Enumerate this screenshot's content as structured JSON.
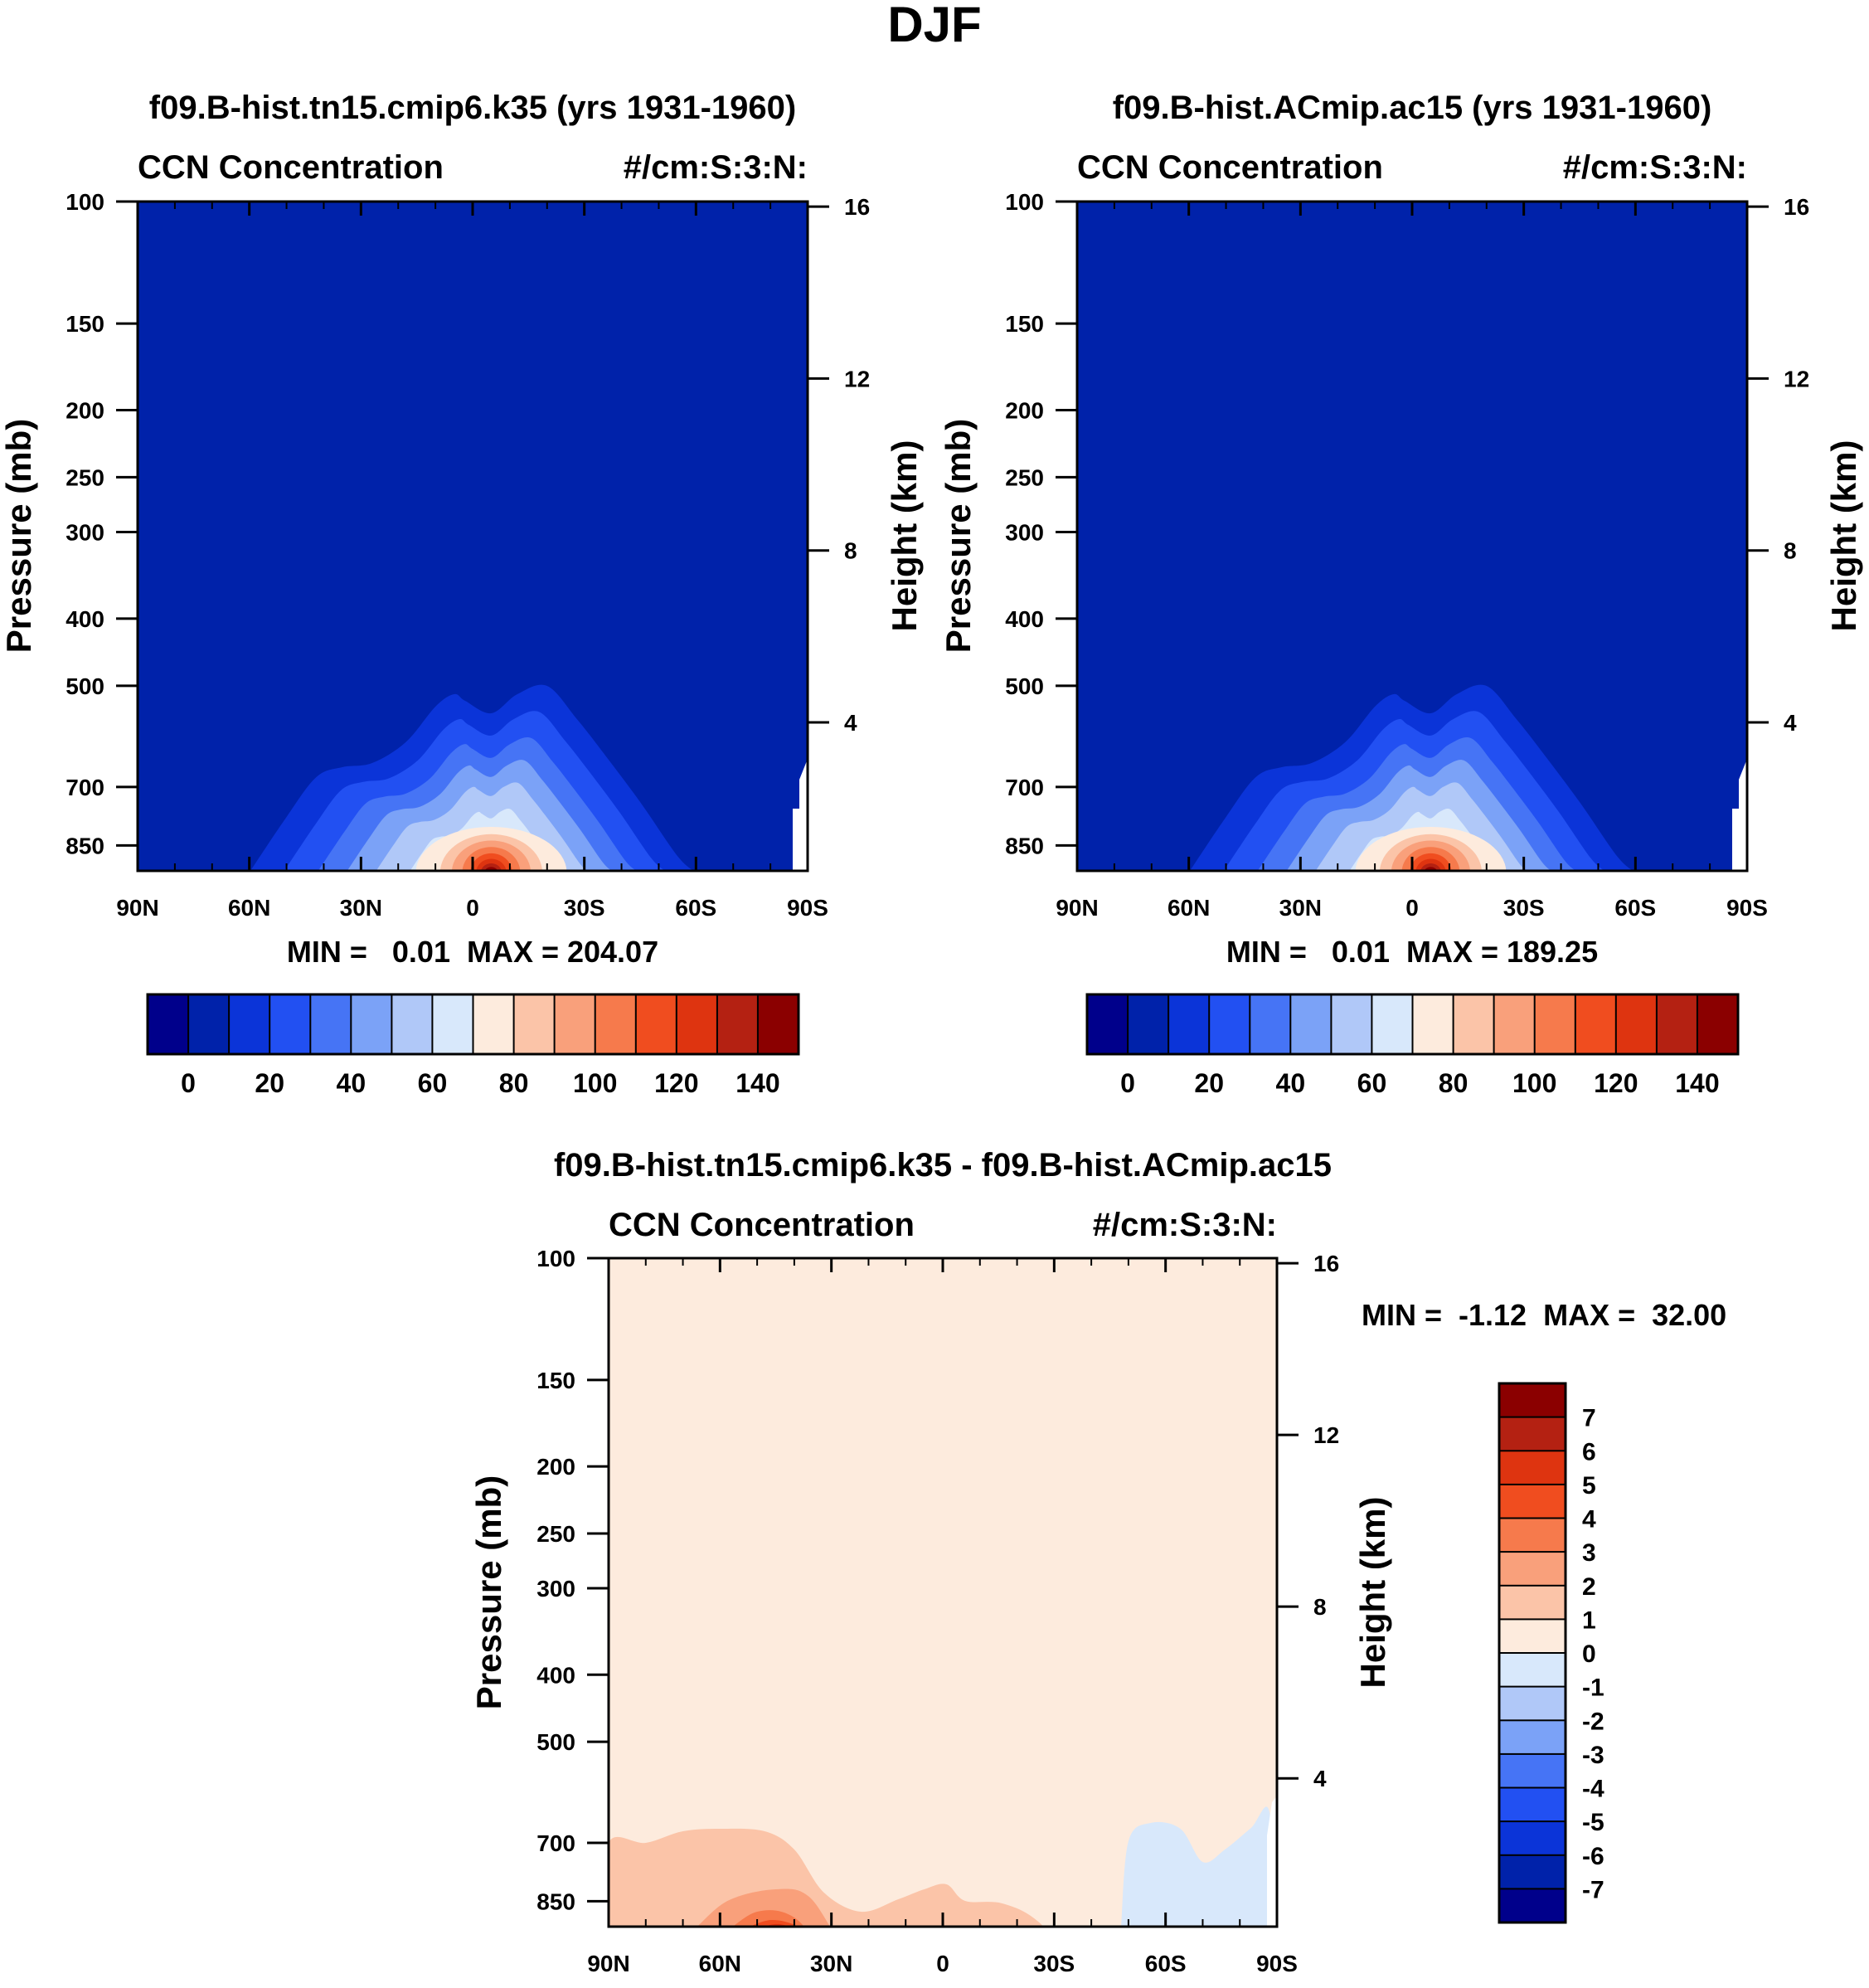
{
  "page_title": "DJF",
  "palette": {
    "main": [
      "#00008b",
      "#0022aa",
      "#0b34d8",
      "#2250f2",
      "#4674f5",
      "#7ba2f7",
      "#b0c8f8",
      "#d8e8fb",
      "#fdebdd",
      "#fbc4a8",
      "#f9a07b",
      "#f67a4c",
      "#f04d1f",
      "#de3410",
      "#b42112",
      "#8b0000"
    ],
    "diff": [
      "#00008b",
      "#0022aa",
      "#0b34d8",
      "#2250f2",
      "#4674f5",
      "#7ba2f7",
      "#b0c8f8",
      "#d8e8fb",
      "#fdebdd",
      "#fbc4a8",
      "#f9a07b",
      "#f67a4c",
      "#f04d1f",
      "#de3410",
      "#b42112",
      "#8b0000"
    ]
  },
  "chart_data": [
    {
      "id": "model-a",
      "type": "contour",
      "title": "f09.B-hist.tn15.cmip6.k35 (yrs 1931-1960)",
      "left_subtitle": "CCN Concentration",
      "right_subtitle": "#/cm:S:3:N:",
      "xlabel": "",
      "ylabel": "Pressure (mb)",
      "y2label": "Height (km)",
      "x_ticks": [
        "90N",
        "60N",
        "30N",
        "0",
        "30S",
        "60S",
        "90S"
      ],
      "y_ticks": [
        100,
        150,
        200,
        250,
        300,
        400,
        500,
        700,
        850
      ],
      "y2_ticks": [
        16,
        12,
        8,
        4
      ],
      "min_max": "MIN =   0.01  MAX = 204.07",
      "colorbar_labels": [
        "0",
        "20",
        "40",
        "60",
        "80",
        "100",
        "120",
        "140"
      ],
      "peak_latitude": -5,
      "cap_top_mb": 500
    },
    {
      "id": "model-b",
      "type": "contour",
      "title": "f09.B-hist.ACmip.ac15 (yrs 1931-1960)",
      "left_subtitle": "CCN Concentration",
      "right_subtitle": "#/cm:S:3:N:",
      "xlabel": "",
      "ylabel": "Pressure (mb)",
      "y2label": "Height (km)",
      "x_ticks": [
        "90N",
        "60N",
        "30N",
        "0",
        "30S",
        "60S",
        "90S"
      ],
      "y_ticks": [
        100,
        150,
        200,
        250,
        300,
        400,
        500,
        700,
        850
      ],
      "y2_ticks": [
        16,
        12,
        8,
        4
      ],
      "min_max": "MIN =   0.01  MAX = 189.25",
      "colorbar_labels": [
        "0",
        "20",
        "40",
        "60",
        "80",
        "100",
        "120",
        "140"
      ],
      "peak_latitude": -5,
      "cap_top_mb": 505
    },
    {
      "id": "difference",
      "type": "contour",
      "title": "f09.B-hist.tn15.cmip6.k35 - f09.B-hist.ACmip.ac15",
      "left_subtitle": "CCN Concentration",
      "right_subtitle": "#/cm:S:3:N:",
      "xlabel": "",
      "ylabel": "Pressure (mb)",
      "y2label": "Height (km)",
      "x_ticks": [
        "90N",
        "60N",
        "30N",
        "0",
        "30S",
        "60S",
        "90S"
      ],
      "y_ticks": [
        100,
        150,
        200,
        250,
        300,
        400,
        500,
        700,
        850
      ],
      "y2_ticks": [
        16,
        12,
        8,
        4
      ],
      "min_max": "MIN =  -1.12  MAX =  32.00",
      "colorbar_labels": [
        "7",
        "6",
        "5",
        "4",
        "3",
        "2",
        "1",
        "0",
        "-1",
        "-2",
        "-3",
        "-4",
        "-5",
        "-6",
        "-7"
      ]
    }
  ]
}
